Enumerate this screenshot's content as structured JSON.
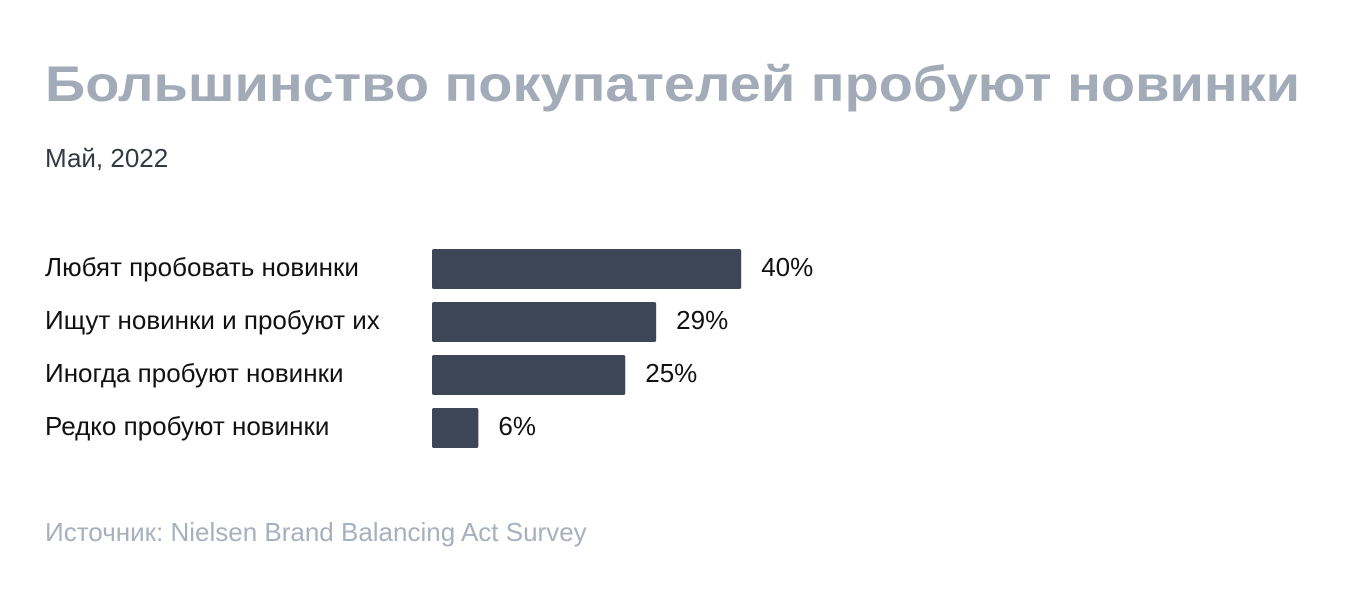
{
  "chart_data": {
    "type": "bar",
    "orientation": "horizontal",
    "title": "Большинство покупателей пробуют новинки",
    "subtitle": "Май, 2022",
    "categories": [
      "Любят пробовать новинки",
      "Ищут новинки и пробуют их",
      "Иногда пробуют новинки",
      "Редко пробуют новинки"
    ],
    "values": [
      40,
      29,
      25,
      6
    ],
    "value_labels": [
      "40%",
      "29%",
      "25%",
      "6%"
    ],
    "color": "#3d4656",
    "source": "Источник: Nielsen Brand Balancing Act Survey"
  }
}
